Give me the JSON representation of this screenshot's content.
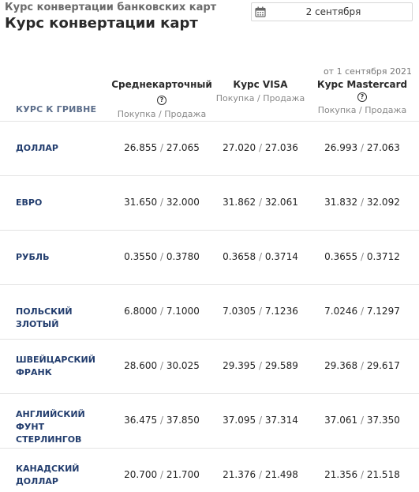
{
  "header": {
    "kicker": "Курс конвертации банковских карт",
    "title": "Курс конвертации карт"
  },
  "date_picker": {
    "icon": "calendar-icon",
    "value": "2 сентября"
  },
  "as_of": "от 1 сентября 2021",
  "table": {
    "row_header": "КУРС К ГРИВНЕ",
    "columns": [
      {
        "name": "Среднекарточный",
        "sub": "Покупка / Продажа",
        "help": "?"
      },
      {
        "name": "Курс VISA",
        "sub": "Покупка / Продажа"
      },
      {
        "name": "Курс Mastercard",
        "sub": "Покупка / Продажа",
        "help": "?"
      }
    ],
    "separator": "/",
    "rows": [
      {
        "line1": "ДОЛЛАР",
        "line2": "",
        "rates": [
          [
            "26.855",
            "27.065"
          ],
          [
            "27.020",
            "27.036"
          ],
          [
            "26.993",
            "27.063"
          ]
        ]
      },
      {
        "line1": "ЕВРО",
        "line2": "",
        "rates": [
          [
            "31.650",
            "32.000"
          ],
          [
            "31.862",
            "32.061"
          ],
          [
            "31.832",
            "32.092"
          ]
        ]
      },
      {
        "line1": "РУБЛЬ",
        "line2": "",
        "rates": [
          [
            "0.3550",
            "0.3780"
          ],
          [
            "0.3658",
            "0.3714"
          ],
          [
            "0.3655",
            "0.3712"
          ]
        ]
      },
      {
        "line1": "ПОЛЬСКИЙ ЗЛОТЫЙ",
        "line2": "",
        "rates": [
          [
            "6.8000",
            "7.1000"
          ],
          [
            "7.0305",
            "7.1236"
          ],
          [
            "7.0246",
            "7.1297"
          ]
        ]
      },
      {
        "line1": "ШВЕЙЦАРСКИЙ",
        "line2": "ФРАНК",
        "rates": [
          [
            "28.600",
            "30.025"
          ],
          [
            "29.395",
            "29.589"
          ],
          [
            "29.368",
            "29.617"
          ]
        ]
      },
      {
        "line1": "АНГЛИЙСКИЙ ФУНТ",
        "line2": "СТЕРЛИНГОВ",
        "rates": [
          [
            "36.475",
            "37.850"
          ],
          [
            "37.095",
            "37.314"
          ],
          [
            "37.061",
            "37.350"
          ]
        ]
      },
      {
        "line1": "КАНАДСКИЙ",
        "line2": "ДОЛЛАР",
        "rates": [
          [
            "20.700",
            "21.700"
          ],
          [
            "21.376",
            "21.498"
          ],
          [
            "21.356",
            "21.518"
          ]
        ]
      }
    ]
  }
}
